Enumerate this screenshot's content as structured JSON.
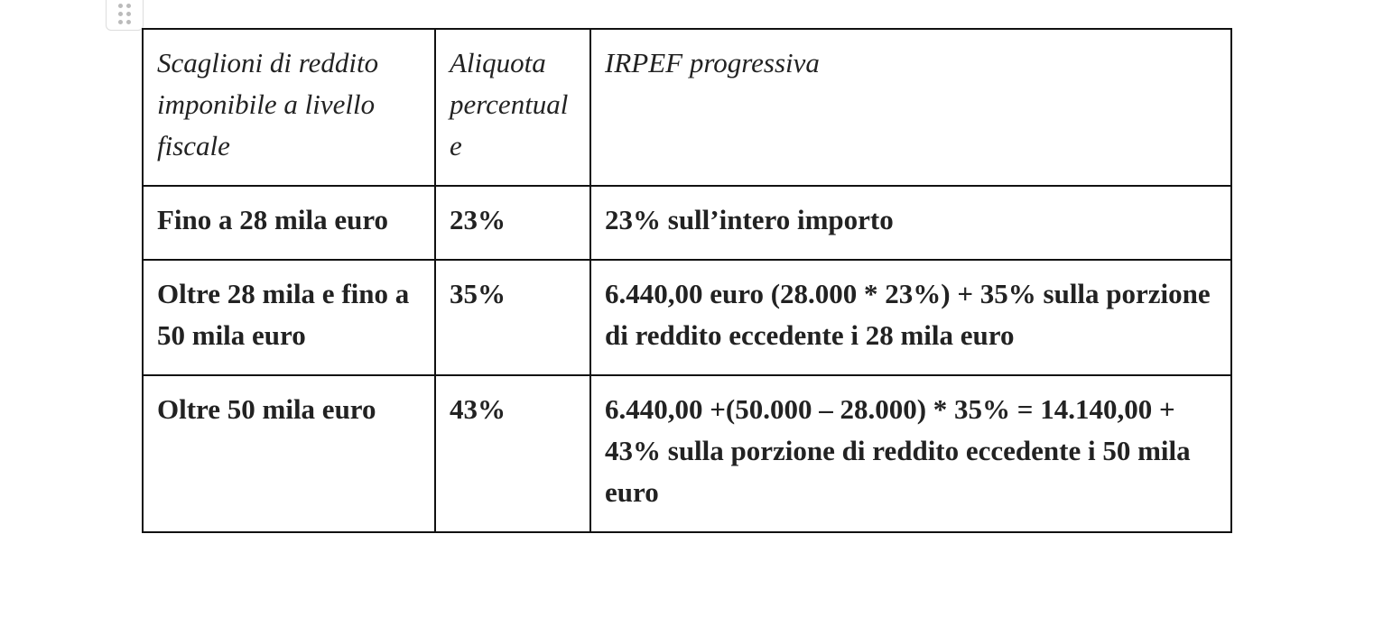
{
  "table": {
    "header": [
      "Scaglioni di reddito imponibile a livello fiscale",
      "Aliquota percentuale",
      "IRPEF progressiva"
    ],
    "rows": [
      [
        "Fino a 28 mila euro",
        "23%",
        "23% sull’intero importo"
      ],
      [
        "Oltre 28 mila e fino a 50 mila euro",
        "35%",
        "6.440,00 euro (28.000 * 23%) + 35% sulla porzione di reddito eccedente i 28 mila euro"
      ],
      [
        "Oltre 50 mila euro",
        "43%",
        "6.440,00 +(50.000 – 28.000) * 35% = 14.140,00 + 43% sulla porzione di reddito eccedente i 50 mila euro"
      ]
    ]
  }
}
